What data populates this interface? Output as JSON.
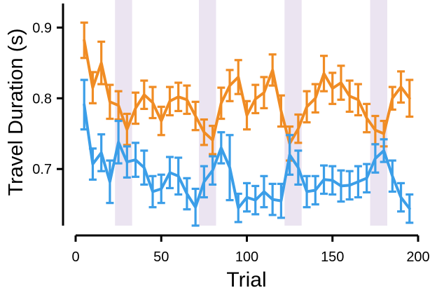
{
  "chart_data": {
    "type": "line",
    "xlabel": "Trial",
    "ylabel": "Travel Duration (s)",
    "xlim": [
      0,
      200
    ],
    "ylim": [
      0.615,
      0.935
    ],
    "xticks": [
      0,
      50,
      100,
      150,
      200
    ],
    "xtick_labels": [
      "0",
      "50",
      "100",
      "150",
      "200"
    ],
    "yticks": [
      0.7,
      0.8,
      0.9
    ],
    "ytick_labels": [
      "0.7",
      "0.8",
      "0.9"
    ],
    "shaded_regions": [
      [
        23,
        33
      ],
      [
        72,
        82
      ],
      [
        122,
        132
      ],
      [
        172,
        182
      ]
    ],
    "shade_color": "#ebe4f1",
    "grid": false,
    "series": [
      {
        "color": "#f08c24",
        "x": [
          5,
          10,
          15,
          20,
          25,
          30,
          35,
          40,
          45,
          50,
          55,
          60,
          65,
          70,
          75,
          80,
          85,
          90,
          95,
          100,
          105,
          110,
          115,
          120,
          125,
          130,
          135,
          140,
          145,
          150,
          155,
          160,
          165,
          170,
          175,
          180,
          185,
          190,
          195
        ],
        "y": [
          0.882,
          0.815,
          0.85,
          0.795,
          0.79,
          0.756,
          0.786,
          0.805,
          0.794,
          0.768,
          0.796,
          0.802,
          0.798,
          0.775,
          0.752,
          0.741,
          0.793,
          0.818,
          0.83,
          0.776,
          0.799,
          0.808,
          0.84,
          0.782,
          0.736,
          0.757,
          0.788,
          0.8,
          0.835,
          0.814,
          0.822,
          0.803,
          0.798,
          0.772,
          0.755,
          0.75,
          0.8,
          0.816,
          0.8
        ],
        "err": [
          0.025,
          0.022,
          0.03,
          0.024,
          0.02,
          0.022,
          0.022,
          0.02,
          0.022,
          0.02,
          0.02,
          0.02,
          0.02,
          0.02,
          0.018,
          0.02,
          0.022,
          0.022,
          0.024,
          0.02,
          0.02,
          0.022,
          0.022,
          0.022,
          0.024,
          0.02,
          0.022,
          0.02,
          0.025,
          0.022,
          0.024,
          0.022,
          0.022,
          0.02,
          0.02,
          0.018,
          0.016,
          0.022,
          0.026
        ]
      },
      {
        "color": "#3b9ee8",
        "x": [
          5,
          10,
          15,
          20,
          25,
          30,
          35,
          40,
          45,
          50,
          55,
          60,
          65,
          70,
          75,
          80,
          85,
          90,
          95,
          100,
          105,
          110,
          115,
          120,
          125,
          130,
          135,
          140,
          145,
          150,
          155,
          160,
          165,
          170,
          175,
          180,
          185,
          190,
          195
        ],
        "y": [
          0.791,
          0.707,
          0.723,
          0.682,
          0.738,
          0.71,
          0.713,
          0.702,
          0.668,
          0.672,
          0.695,
          0.69,
          0.665,
          0.646,
          0.682,
          0.698,
          0.73,
          0.702,
          0.645,
          0.66,
          0.656,
          0.668,
          0.657,
          0.655,
          0.72,
          0.702,
          0.668,
          0.67,
          0.685,
          0.684,
          0.676,
          0.677,
          0.682,
          0.687,
          0.715,
          0.726,
          0.69,
          0.66,
          0.644
        ],
        "err": [
          0.035,
          0.022,
          0.026,
          0.03,
          0.03,
          0.022,
          0.024,
          0.024,
          0.022,
          0.02,
          0.022,
          0.026,
          0.022,
          0.026,
          0.022,
          0.02,
          0.022,
          0.046,
          0.02,
          0.02,
          0.02,
          0.022,
          0.022,
          0.024,
          0.028,
          0.024,
          0.022,
          0.02,
          0.02,
          0.02,
          0.022,
          0.02,
          0.022,
          0.02,
          0.02,
          0.016,
          0.022,
          0.02,
          0.02
        ]
      }
    ]
  }
}
